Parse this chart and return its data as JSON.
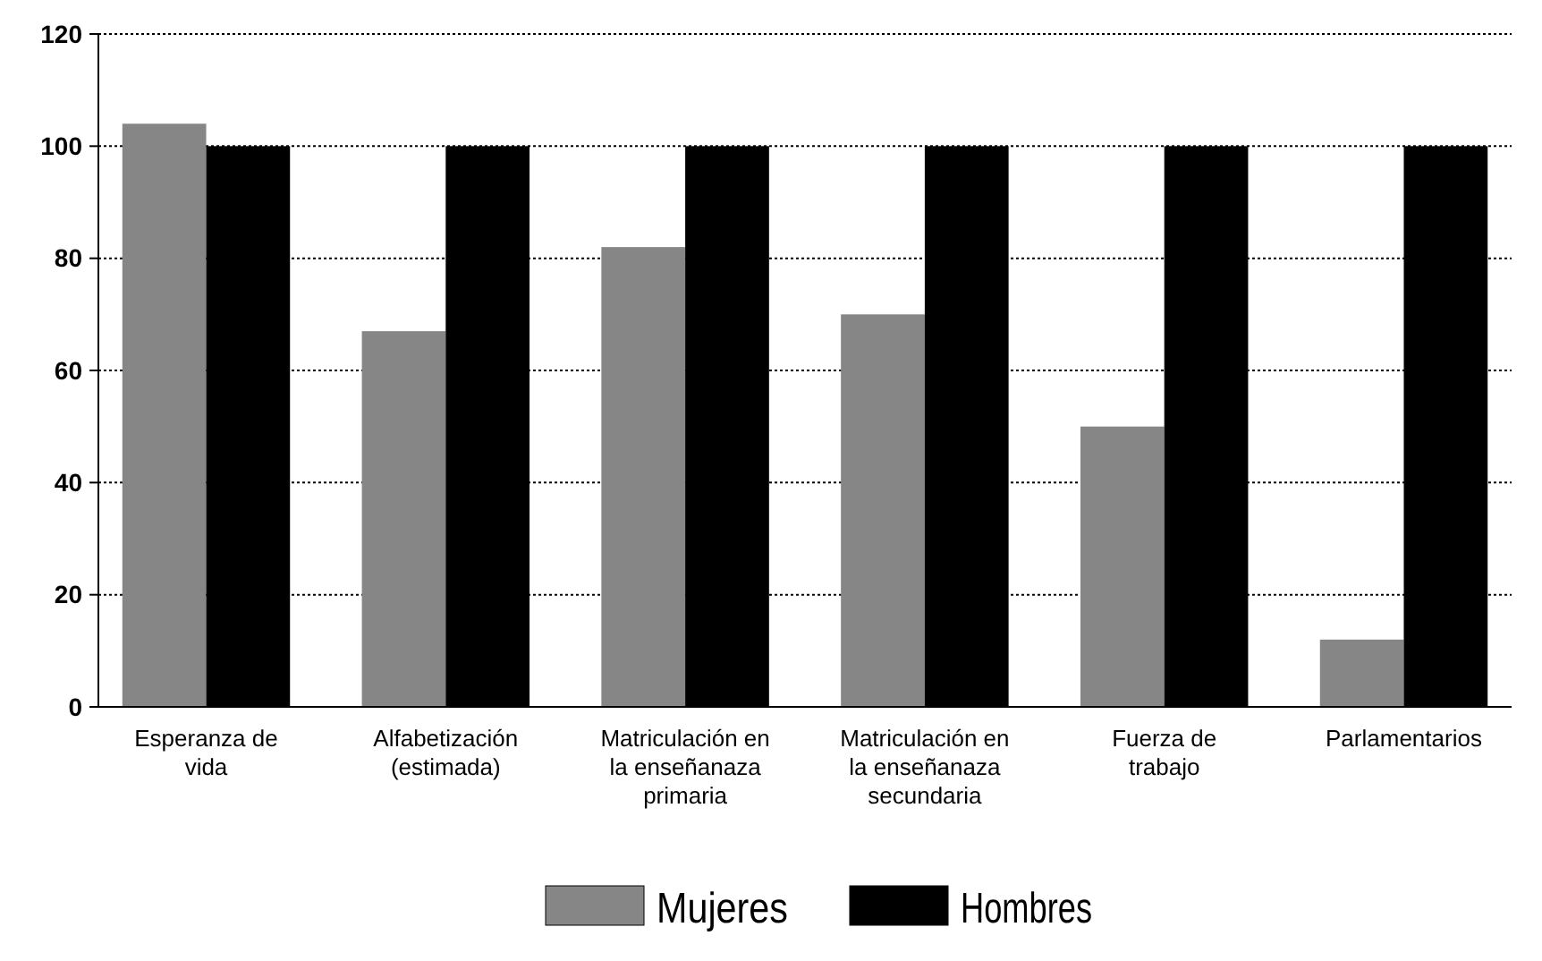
{
  "chart_data": {
    "type": "bar",
    "categories": [
      "Esperanza de vida",
      "Alfabetización (estimada)",
      "Matriculación en la enseñanaza primaria",
      "Matriculación en la enseñanaza secundaria",
      "Fuerza de trabajo",
      "Parlamentarios"
    ],
    "series": [
      {
        "name": "Mujeres",
        "color": "#868686",
        "values": [
          104,
          67,
          82,
          70,
          50,
          12
        ]
      },
      {
        "name": "Hombres",
        "color": "#000000",
        "values": [
          100,
          100,
          100,
          100,
          100,
          100
        ]
      }
    ],
    "ylim": [
      0,
      120
    ],
    "yticks": [
      0,
      20,
      40,
      60,
      80,
      100,
      120
    ],
    "grid": "y",
    "legend": "bottom"
  }
}
